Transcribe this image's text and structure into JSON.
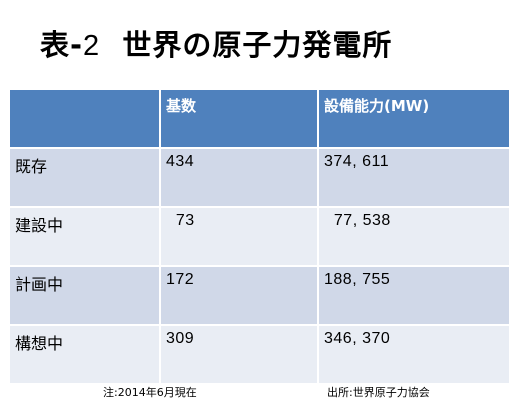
{
  "title": {
    "prefix": "表-",
    "number": "2",
    "main": "世界の原子力発電所"
  },
  "table": {
    "headers": [
      "",
      "基数",
      "設備能力(MW)"
    ],
    "rows": [
      {
        "label": "既存",
        "units": "434",
        "capacity": "374, 611"
      },
      {
        "label": "建設中",
        "units": "  73",
        "capacity": "  77, 538"
      },
      {
        "label": "計画中",
        "units": "172",
        "capacity": "188, 755"
      },
      {
        "label": "構想中",
        "units": "309",
        "capacity": "346, 370"
      }
    ]
  },
  "footer": {
    "note": "注:2014年6月現在",
    "source": "出所:世界原子力協会"
  },
  "colors": {
    "header": "#4f81bd",
    "row_dark": "#d0d8e8",
    "row_light": "#e9edf4"
  }
}
